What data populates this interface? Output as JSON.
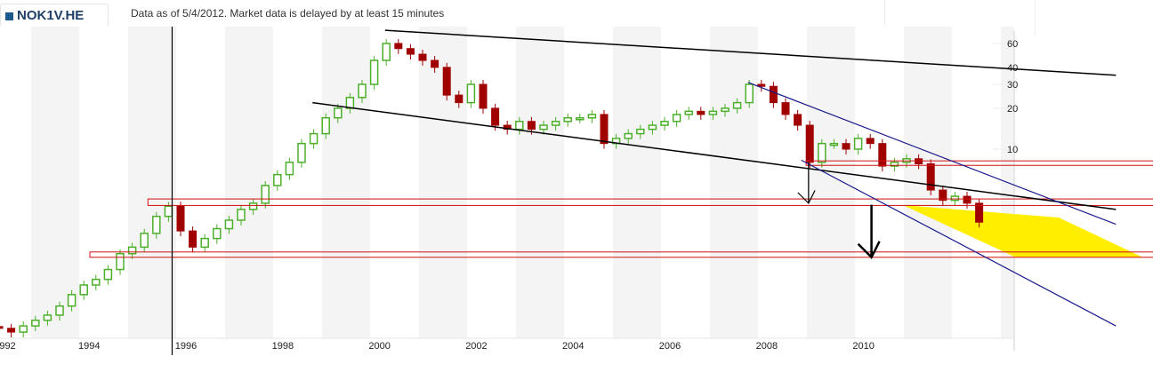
{
  "header": {
    "symbol": "NOK1V.HE",
    "note": "Data as of 5/4/2012. Market data is delayed by at least 15 minutes"
  },
  "colors": {
    "up": "#4caf2a",
    "down": "#a00000",
    "band": "#f4f4f4",
    "trend": "#000000",
    "channel": "#1a1a8c",
    "level": "#d01010",
    "target": "#ffee00"
  },
  "chart_data": {
    "type": "candlestick",
    "y_scale": "log",
    "ylim": [
      0.45,
      75
    ],
    "y_ticks": [
      "60",
      "40",
      "30",
      "20",
      "10"
    ],
    "y_tick_values": [
      60,
      40,
      30,
      20,
      10
    ],
    "x_ticks": [
      "1992",
      "1994",
      "1996",
      "1998",
      "2000",
      "2002",
      "2004",
      "2006",
      "2008",
      "2010"
    ],
    "x_tick_values": [
      1992,
      1994,
      1996,
      1998,
      2000,
      2002,
      2004,
      2006,
      2008,
      2010
    ],
    "start_year": 1992,
    "period": "quarter",
    "closes": [
      0.48,
      0.45,
      0.5,
      0.55,
      0.6,
      0.7,
      0.85,
      1.0,
      1.1,
      1.3,
      1.7,
      1.9,
      2.4,
      3.2,
      3.8,
      2.5,
      1.9,
      2.2,
      2.6,
      3.0,
      3.6,
      4.0,
      5.4,
      6.5,
      8,
      11,
      13,
      17,
      20,
      24,
      30,
      45,
      60,
      55,
      50,
      45,
      40,
      25,
      22,
      30,
      20,
      15,
      14,
      16,
      14,
      15,
      16,
      17,
      17,
      18,
      11,
      12,
      13,
      14,
      15,
      16,
      18,
      19,
      18,
      19,
      20,
      22,
      30,
      29,
      22,
      18,
      15,
      8,
      11,
      11,
      10,
      12,
      11,
      7.5,
      8,
      8.5,
      7.8,
      5,
      4.2,
      4.5,
      4.0,
      2.9
    ],
    "annotations": {
      "trendlines": [
        {
          "from": [
            2000.1,
            75
          ],
          "to": [
            2015.2,
            35
          ]
        },
        {
          "from": [
            1998.6,
            22
          ],
          "to": [
            2015.2,
            3.6
          ]
        }
      ],
      "channel": [
        {
          "from": [
            2007.6,
            31
          ],
          "to": [
            2015.2,
            2.8
          ]
        },
        {
          "from": [
            2008.7,
            8.3
          ],
          "to": [
            2015.2,
            0.5
          ]
        }
      ],
      "levels": [
        {
          "price_range": [
            3.85,
            4.3
          ],
          "from": 1995.2
        },
        {
          "price_range": [
            1.6,
            1.75
          ],
          "from": 1994.0
        },
        {
          "price_range": [
            7.6,
            8.2
          ],
          "from": 2008.8
        }
      ],
      "arrows": [
        {
          "year": 2008.85,
          "from": 8,
          "to": 4.0
        },
        {
          "year": 2010.15,
          "to": 1.6,
          "from": 3.9
        }
      ],
      "target_zone": true,
      "vertical_marker": 1995.7
    }
  }
}
